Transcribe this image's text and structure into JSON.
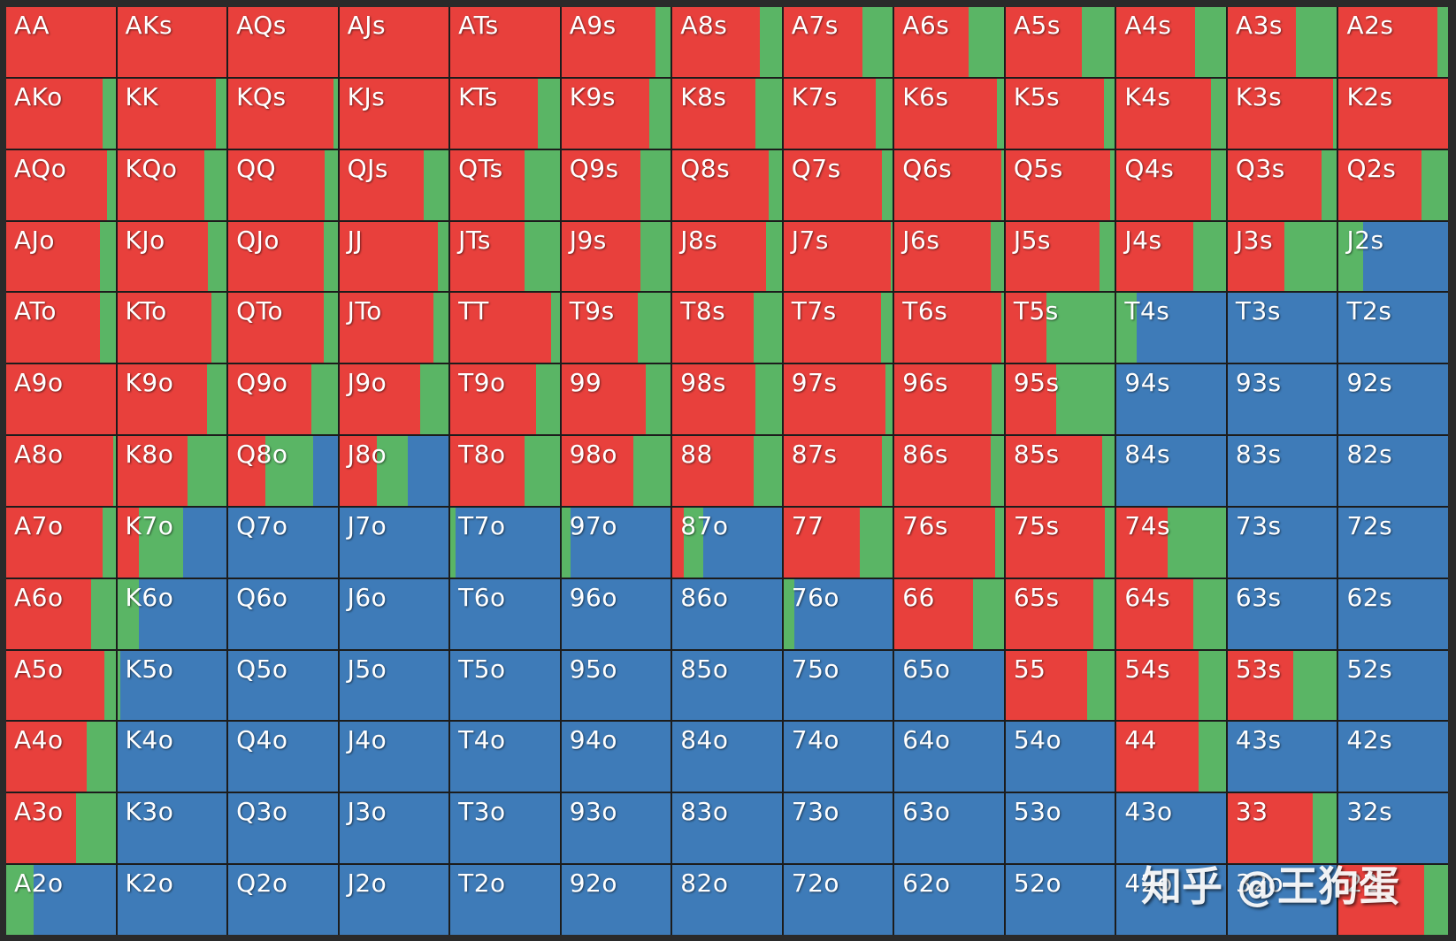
{
  "colors": {
    "raise": "#e8403c",
    "call": "#5ab565",
    "fold": "#3e7bb8",
    "grid_bg": "#1c1c1c"
  },
  "watermark": "知乎 @王狗蛋",
  "chart_data": {
    "type": "heatmap",
    "description_of_values": "each cell split left-to-right into raise (red), call (green), fold (blue) frequencies",
    "cells": [
      [
        [
          "AA",
          1,
          0
        ],
        [
          "AKs",
          1,
          0
        ],
        [
          "AQs",
          1,
          0
        ],
        [
          "AJs",
          1,
          0
        ],
        [
          "ATs",
          1,
          0
        ],
        [
          "A9s",
          0.86,
          0.14
        ],
        [
          "A8s",
          0.8,
          0.2
        ],
        [
          "A7s",
          0.72,
          0.28
        ],
        [
          "A6s",
          0.68,
          0.32
        ],
        [
          "A5s",
          0.7,
          0.3
        ],
        [
          "A4s",
          0.72,
          0.28
        ],
        [
          "A3s",
          0.62,
          0.38
        ],
        [
          "A2s",
          0.9,
          0.1
        ]
      ],
      [
        [
          "AKo",
          0.88,
          0.12
        ],
        [
          "KK",
          0.9,
          0.1
        ],
        [
          "KQs",
          0.96,
          0.04
        ],
        [
          "KJs",
          1,
          0
        ],
        [
          "KTs",
          0.8,
          0.2
        ],
        [
          "K9s",
          0.8,
          0.2
        ],
        [
          "K8s",
          0.76,
          0.24
        ],
        [
          "K7s",
          0.84,
          0.16
        ],
        [
          "K6s",
          0.94,
          0.06
        ],
        [
          "K5s",
          0.9,
          0.1
        ],
        [
          "K4s",
          0.86,
          0.14
        ],
        [
          "K3s",
          0.96,
          0.04
        ],
        [
          "K2s",
          1,
          0
        ]
      ],
      [
        [
          "AQo",
          0.92,
          0.08
        ],
        [
          "KQo",
          0.8,
          0.2
        ],
        [
          "QQ",
          0.88,
          0.12
        ],
        [
          "QJs",
          0.77,
          0.23
        ],
        [
          "QTs",
          0.68,
          0.32
        ],
        [
          "Q9s",
          0.72,
          0.28
        ],
        [
          "Q8s",
          0.88,
          0.12
        ],
        [
          "Q7s",
          0.9,
          0.1
        ],
        [
          "Q6s",
          0.98,
          0.02
        ],
        [
          "Q5s",
          0.96,
          0.04
        ],
        [
          "Q4s",
          0.86,
          0.14
        ],
        [
          "Q3s",
          0.86,
          0.14
        ],
        [
          "Q2s",
          0.76,
          0.24
        ]
      ],
      [
        [
          "AJo",
          0.86,
          0.14
        ],
        [
          "KJo",
          0.83,
          0.17
        ],
        [
          "QJo",
          0.87,
          0.13
        ],
        [
          "JJ",
          0.9,
          0.1
        ],
        [
          "JTs",
          0.68,
          0.32
        ],
        [
          "J9s",
          0.72,
          0.28
        ],
        [
          "J8s",
          0.86,
          0.14
        ],
        [
          "J7s",
          0.98,
          0.02
        ],
        [
          "J6s",
          0.88,
          0.12
        ],
        [
          "J5s",
          0.86,
          0.14
        ],
        [
          "J4s",
          0.7,
          0.3
        ],
        [
          "J3s",
          0.52,
          0.48
        ],
        [
          "J2s",
          0.0,
          0.22
        ]
      ],
      [
        [
          "ATo",
          0.86,
          0.14
        ],
        [
          "KTo",
          0.86,
          0.14
        ],
        [
          "QTo",
          0.87,
          0.13
        ],
        [
          "JTo",
          0.86,
          0.14
        ],
        [
          "TT",
          0.92,
          0.08
        ],
        [
          "T9s",
          0.7,
          0.3
        ],
        [
          "T8s",
          0.74,
          0.26
        ],
        [
          "T7s",
          0.89,
          0.11
        ],
        [
          "T6s",
          0.98,
          0.02
        ],
        [
          "T5s",
          0.37,
          0.63
        ],
        [
          "T4s",
          0,
          0.18
        ],
        [
          "T3s",
          0,
          0
        ],
        [
          "T2s",
          0,
          0
        ]
      ],
      [
        [
          "A9o",
          1,
          0
        ],
        [
          "K9o",
          0.82,
          0.18
        ],
        [
          "Q9o",
          0.76,
          0.24
        ],
        [
          "J9o",
          0.74,
          0.26
        ],
        [
          "T9o",
          0.78,
          0.22
        ],
        [
          "99",
          0.77,
          0.23
        ],
        [
          "98s",
          0.76,
          0.24
        ],
        [
          "97s",
          0.93,
          0.07
        ],
        [
          "96s",
          0.89,
          0.11
        ],
        [
          "95s",
          0.46,
          0.54
        ],
        [
          "94s",
          0,
          0
        ],
        [
          "93s",
          0,
          0
        ],
        [
          "92s",
          0,
          0
        ]
      ],
      [
        [
          "A8o",
          0.98,
          0.02
        ],
        [
          "K8o",
          0.64,
          0.36
        ],
        [
          "Q8o",
          0.34,
          0.44
        ],
        [
          "J8o",
          0.34,
          0.29
        ],
        [
          "T8o",
          0.68,
          0.32
        ],
        [
          "98o",
          0.66,
          0.34
        ],
        [
          "88",
          0.74,
          0.26
        ],
        [
          "87s",
          0.9,
          0.1
        ],
        [
          "86s",
          0.88,
          0.12
        ],
        [
          "85s",
          0.88,
          0.12
        ],
        [
          "84s",
          0,
          0
        ],
        [
          "83s",
          0,
          0
        ],
        [
          "82s",
          0,
          0
        ]
      ],
      [
        [
          "A7o",
          0.88,
          0.12
        ],
        [
          "K7o",
          0.2,
          0.4
        ],
        [
          "Q7o",
          0,
          0
        ],
        [
          "J7o",
          0,
          0
        ],
        [
          "T7o",
          0,
          0.05
        ],
        [
          "97o",
          0,
          0.08
        ],
        [
          "87o",
          0.1,
          0.18
        ],
        [
          "77",
          0.7,
          0.3
        ],
        [
          "76s",
          0.92,
          0.08
        ],
        [
          "75s",
          0.91,
          0.09
        ],
        [
          "74s",
          0.47,
          0.53
        ],
        [
          "73s",
          0,
          0
        ],
        [
          "72s",
          0,
          0
        ]
      ],
      [
        [
          "A6o",
          0.78,
          0.22
        ],
        [
          "K6o",
          0,
          0.2
        ],
        [
          "Q6o",
          0,
          0
        ],
        [
          "J6o",
          0,
          0
        ],
        [
          "T6o",
          0,
          0
        ],
        [
          "96o",
          0,
          0
        ],
        [
          "86o",
          0,
          0
        ],
        [
          "76o",
          0,
          0.1
        ],
        [
          "66",
          0.72,
          0.28
        ],
        [
          "65s",
          0.8,
          0.2
        ],
        [
          "64s",
          0.7,
          0.3
        ],
        [
          "63s",
          0,
          0
        ],
        [
          "62s",
          0,
          0
        ]
      ],
      [
        [
          "A5o",
          0.9,
          0.1
        ],
        [
          "K5o",
          0,
          0.03
        ],
        [
          "Q5o",
          0,
          0
        ],
        [
          "J5o",
          0,
          0
        ],
        [
          "T5o",
          0,
          0
        ],
        [
          "95o",
          0,
          0
        ],
        [
          "85o",
          0,
          0
        ],
        [
          "75o",
          0,
          0
        ],
        [
          "65o",
          0,
          0
        ],
        [
          "55",
          0.75,
          0.25
        ],
        [
          "54s",
          0.75,
          0.25
        ],
        [
          "53s",
          0.6,
          0.4
        ],
        [
          "52s",
          0,
          0
        ]
      ],
      [
        [
          "A4o",
          0.74,
          0.26
        ],
        [
          "K4o",
          0,
          0
        ],
        [
          "Q4o",
          0,
          0
        ],
        [
          "J4o",
          0,
          0
        ],
        [
          "T4o",
          0,
          0
        ],
        [
          "94o",
          0,
          0
        ],
        [
          "84o",
          0,
          0
        ],
        [
          "74o",
          0,
          0
        ],
        [
          "64o",
          0,
          0
        ],
        [
          "54o",
          0,
          0
        ],
        [
          "44",
          0.75,
          0.25
        ],
        [
          "43s",
          0,
          0
        ],
        [
          "42s",
          0,
          0
        ]
      ],
      [
        [
          "A3o",
          0.64,
          0.36
        ],
        [
          "K3o",
          0,
          0
        ],
        [
          "Q3o",
          0,
          0
        ],
        [
          "J3o",
          0,
          0
        ],
        [
          "T3o",
          0,
          0
        ],
        [
          "93o",
          0,
          0
        ],
        [
          "83o",
          0,
          0
        ],
        [
          "73o",
          0,
          0
        ],
        [
          "63o",
          0,
          0
        ],
        [
          "53o",
          0,
          0
        ],
        [
          "43o",
          0,
          0
        ],
        [
          "33",
          0.78,
          0.22
        ],
        [
          "32s",
          0,
          0
        ]
      ],
      [
        [
          "A2o",
          0,
          0.25
        ],
        [
          "K2o",
          0,
          0
        ],
        [
          "Q2o",
          0,
          0
        ],
        [
          "J2o",
          0,
          0
        ],
        [
          "T2o",
          0,
          0
        ],
        [
          "92o",
          0,
          0
        ],
        [
          "82o",
          0,
          0
        ],
        [
          "72o",
          0,
          0
        ],
        [
          "62o",
          0,
          0
        ],
        [
          "52o",
          0,
          0
        ],
        [
          "42o",
          0,
          0
        ],
        [
          "32o",
          0,
          0
        ],
        [
          "22",
          0.78,
          0.22
        ]
      ]
    ]
  }
}
